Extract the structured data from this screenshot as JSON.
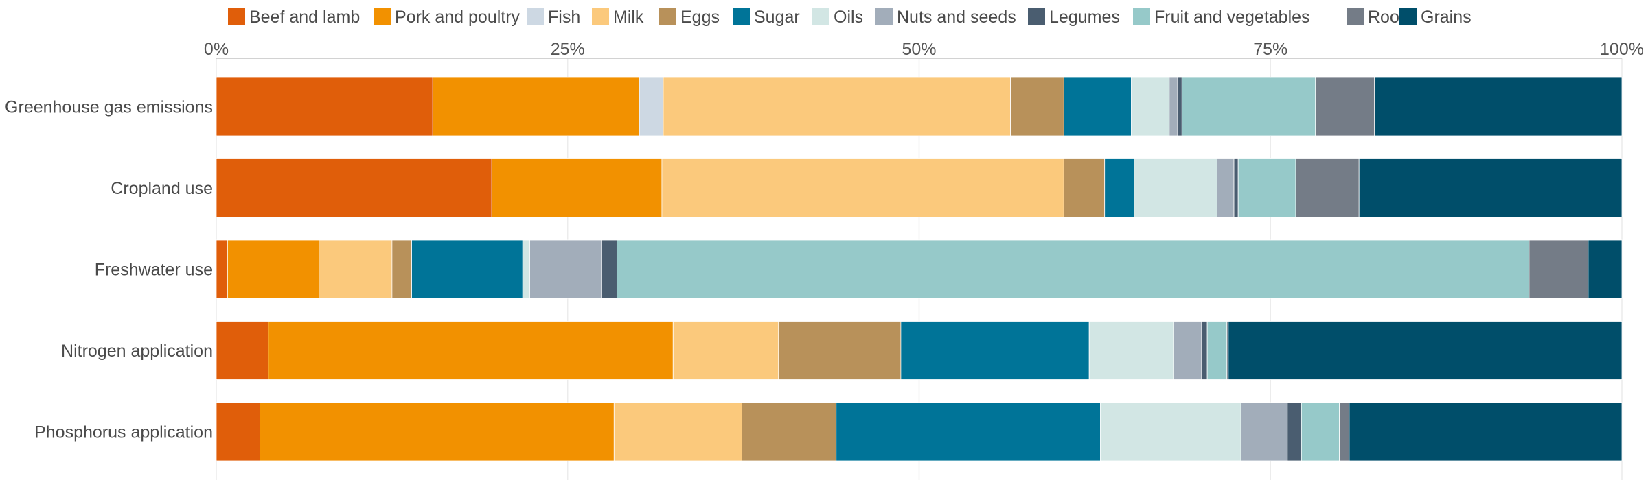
{
  "chart_data": {
    "type": "bar",
    "orientation": "horizontal",
    "stacked": true,
    "title": "",
    "xlabel": "",
    "ylabel": "",
    "xlim": [
      0,
      100
    ],
    "ticks": [
      {
        "value": 0,
        "label": "0%"
      },
      {
        "value": 25,
        "label": "25%"
      },
      {
        "value": 50,
        "label": "50%"
      },
      {
        "value": 75,
        "label": "75%"
      },
      {
        "value": 100,
        "label": "100%"
      }
    ],
    "grid": true,
    "legend_position": "top",
    "categories": [
      "Greenhouse gas emissions",
      "Cropland use",
      "Freshwater use",
      "Nitrogen application",
      "Phosphorus application"
    ],
    "series": [
      {
        "name": "Beef and lamb",
        "color": "#e05e0a",
        "values": [
          15.4,
          19.6,
          0.8,
          3.7,
          3.1
        ]
      },
      {
        "name": "Pork and poultry",
        "color": "#f29100",
        "values": [
          14.7,
          12.1,
          6.5,
          28.8,
          25.2
        ]
      },
      {
        "name": "Fish",
        "color": "#cdd8e3",
        "values": [
          1.7,
          0.0,
          0.0,
          0.0,
          0.0
        ]
      },
      {
        "name": "Milk",
        "color": "#fbc97c",
        "values": [
          24.7,
          28.6,
          5.2,
          7.5,
          9.1
        ]
      },
      {
        "name": "Eggs",
        "color": "#b8915a",
        "values": [
          3.8,
          2.9,
          1.4,
          8.7,
          6.7
        ]
      },
      {
        "name": "Sugar",
        "color": "#007498",
        "values": [
          4.8,
          2.1,
          7.9,
          13.4,
          18.8
        ]
      },
      {
        "name": "Oils",
        "color": "#d2e6e4",
        "values": [
          2.7,
          5.9,
          0.5,
          6.0,
          10.0
        ]
      },
      {
        "name": "Nuts and seeds",
        "color": "#a2adba",
        "values": [
          0.6,
          1.2,
          5.1,
          2.0,
          3.3
        ]
      },
      {
        "name": "Legumes",
        "color": "#4a5d70",
        "values": [
          0.3,
          0.3,
          1.1,
          0.4,
          1.0
        ]
      },
      {
        "name": "Fruit and vegetables",
        "color": "#96c9c9",
        "values": [
          9.5,
          4.1,
          64.9,
          1.4,
          2.7
        ]
      },
      {
        "name": "Roots",
        "color": "#747c87",
        "values": [
          4.2,
          4.5,
          4.2,
          0.1,
          0.7
        ]
      },
      {
        "name": "Grains",
        "color": "#004e6a",
        "values": [
          17.6,
          18.7,
          2.4,
          28.0,
          19.4
        ]
      }
    ]
  }
}
